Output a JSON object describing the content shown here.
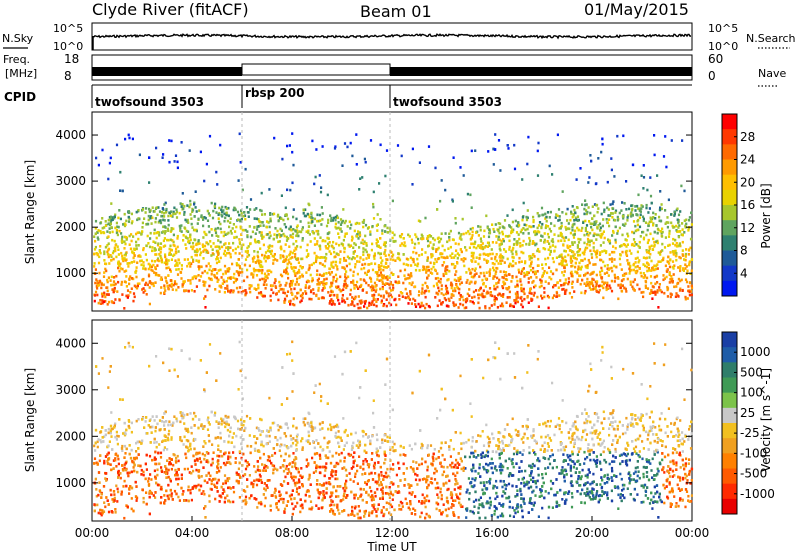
{
  "header": {
    "station": "Clyde River (fitACF)",
    "beam": "Beam 01",
    "date": "01/May/2015"
  },
  "labels": {
    "nsky": "N.Sky",
    "nsearch": "N.Search",
    "freq": "Freq.",
    "freq_unit": "[MHz]",
    "nave": "Nave",
    "cpid": "CPID",
    "nsky_ticks": [
      "10^5",
      "10^0"
    ],
    "nsearch_ticks": [
      "10^5",
      "10^0"
    ],
    "freq_ticks": [
      "18",
      "8"
    ],
    "nave_ticks": [
      "60",
      "0"
    ]
  },
  "cpid_segments": [
    {
      "label": "twofsound 3503",
      "start_hour": 0,
      "end_hour": 6
    },
    {
      "label": "rbsp 200",
      "start_hour": 6,
      "end_hour": 12
    },
    {
      "label": "twofsound 3503",
      "start_hour": 12,
      "end_hour": 24
    }
  ],
  "chart_data": [
    {
      "type": "heatmap",
      "name": "power",
      "ylabel": "Slant Range [km]",
      "xlim": [
        0,
        24
      ],
      "ylim": [
        180,
        4500
      ],
      "yticks": [
        "1000",
        "2000",
        "3000",
        "4000"
      ],
      "colorbar": {
        "label": "Power [dB]",
        "ticks": [
          "28",
          "24",
          "20",
          "16",
          "12",
          "8",
          "4"
        ],
        "colors": [
          "#ff0000",
          "#ff3800",
          "#ff6a00",
          "#ff9a00",
          "#ffbf00",
          "#e8d200",
          "#a7c62c",
          "#5fa45f",
          "#2e8070",
          "#1e5a98",
          "#1238c8",
          "#0018f0"
        ]
      }
    },
    {
      "type": "heatmap",
      "name": "velocity",
      "ylabel": "Slant Range [km]",
      "xlim": [
        0,
        24
      ],
      "ylim": [
        180,
        4500
      ],
      "yticks": [
        "1000",
        "2000",
        "3000",
        "4000"
      ],
      "colorbar": {
        "label": "Velocity [m s^-1]",
        "ticks": [
          "1000",
          "500",
          "100",
          "25",
          "-25",
          "-100",
          "-500",
          "-1000"
        ],
        "colors": [
          "#1a3fa5",
          "#1f5da8",
          "#2f7e6a",
          "#3f9a55",
          "#7cc34a",
          "#c8c8c8",
          "#f2c020",
          "#f0a020",
          "#ff8000",
          "#ff5a00",
          "#ff2a00",
          "#e80000"
        ]
      }
    }
  ],
  "xaxis": {
    "label": "Time UT",
    "ticks": [
      "00:00",
      "04:00",
      "08:00",
      "12:00",
      "16:00",
      "20:00",
      "00:00"
    ]
  }
}
